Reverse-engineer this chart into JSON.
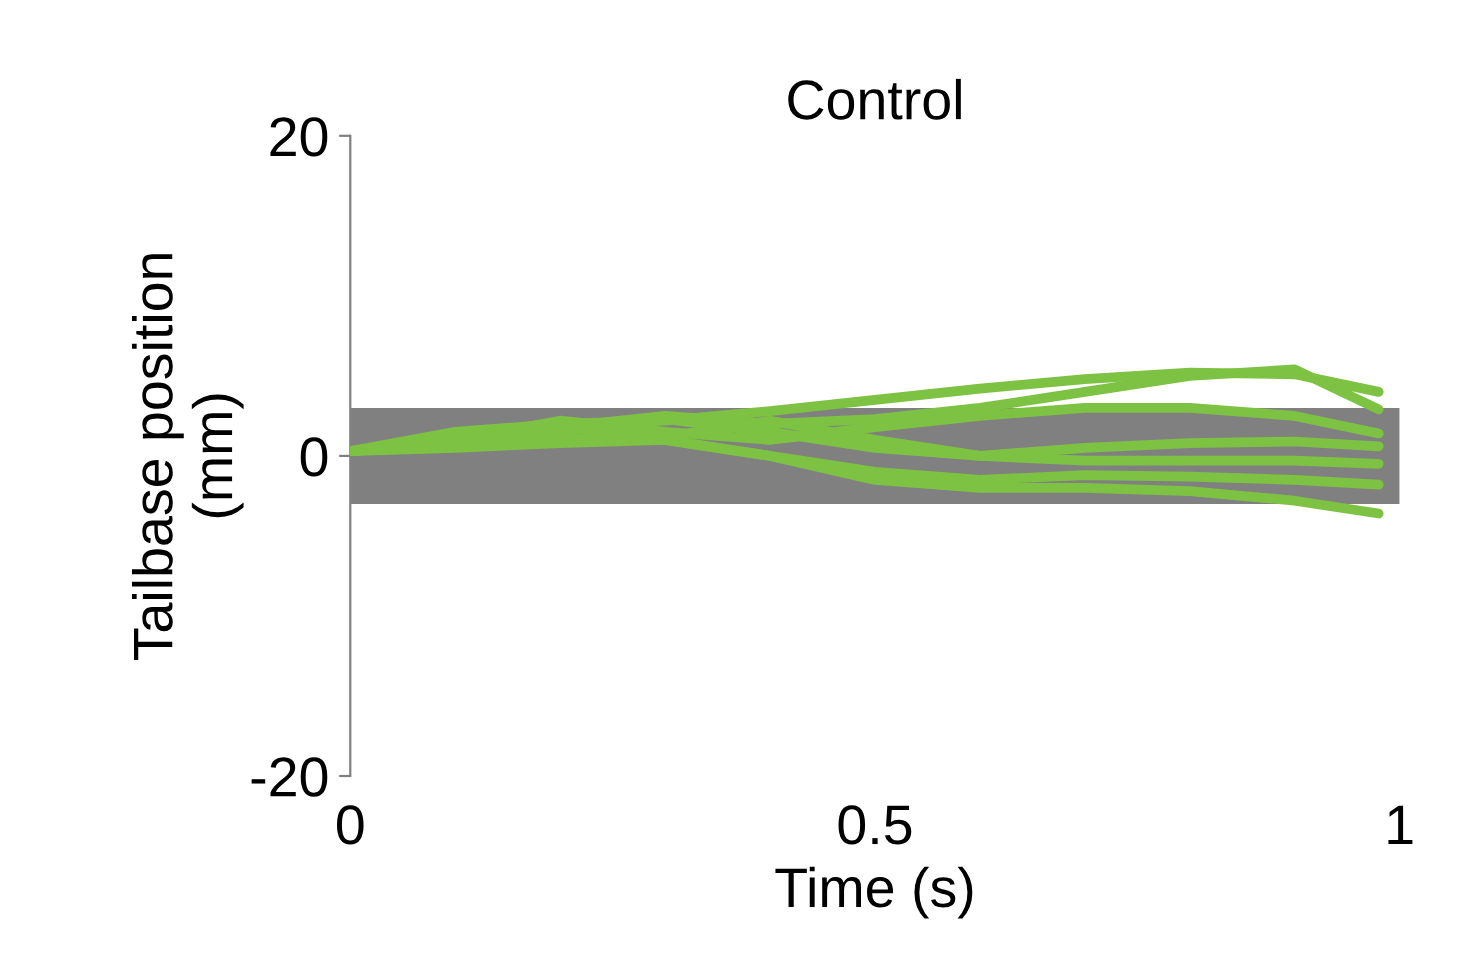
{
  "chart_data": {
    "type": "line",
    "title": "Control",
    "xlabel": "Time (s)",
    "ylabel": "Tailbase position\n(mm)",
    "x": [
      0,
      0.1,
      0.2,
      0.3,
      0.4,
      0.5,
      0.6,
      0.7,
      0.8,
      0.9,
      0.98
    ],
    "series": [
      {
        "color": "#7dc242",
        "values": [
          0.3,
          1.5,
          2,
          2.2,
          2.8,
          3.5,
          4.2,
          4.8,
          5.2,
          5.1,
          4.0
        ]
      },
      {
        "color": "#7dc242",
        "values": [
          0.3,
          1.2,
          1.8,
          2.5,
          2.0,
          2.3,
          3.0,
          4.0,
          5.0,
          5.4,
          2.9
        ]
      },
      {
        "color": "#7dc242",
        "values": [
          0.3,
          1.0,
          2.2,
          1.5,
          1.0,
          1.8,
          2.5,
          3.0,
          3.0,
          2.5,
          1.4
        ]
      },
      {
        "color": "#7dc242",
        "values": [
          0.3,
          0.8,
          1.5,
          2.3,
          1.5,
          0.5,
          0.0,
          0.5,
          0.8,
          0.9,
          0.6
        ]
      },
      {
        "color": "#7dc242",
        "values": [
          0.3,
          1.0,
          1.0,
          1.2,
          2.2,
          1.0,
          0.0,
          -0.3,
          -0.3,
          -0.3,
          -0.5
        ]
      },
      {
        "color": "#7dc242",
        "values": [
          0.3,
          0.8,
          1.8,
          1.0,
          0.0,
          -1.0,
          -1.5,
          -1.2,
          -1.3,
          -1.5,
          -1.8
        ]
      },
      {
        "color": "#7dc242",
        "values": [
          0.3,
          0.5,
          0.8,
          1.0,
          0.0,
          -1.5,
          -2.0,
          -2.0,
          -2.2,
          -2.8,
          -3.6
        ]
      }
    ],
    "bands": [
      {
        "axis": "y",
        "from": -3,
        "to": 3,
        "color": "#808080"
      }
    ],
    "xlim": [
      0,
      1
    ],
    "xticks": [
      0,
      0.5,
      1
    ],
    "ylim": [
      -20,
      20
    ],
    "yticks": [
      -20,
      0,
      20
    ],
    "line_style": "solid",
    "marker": "none"
  }
}
